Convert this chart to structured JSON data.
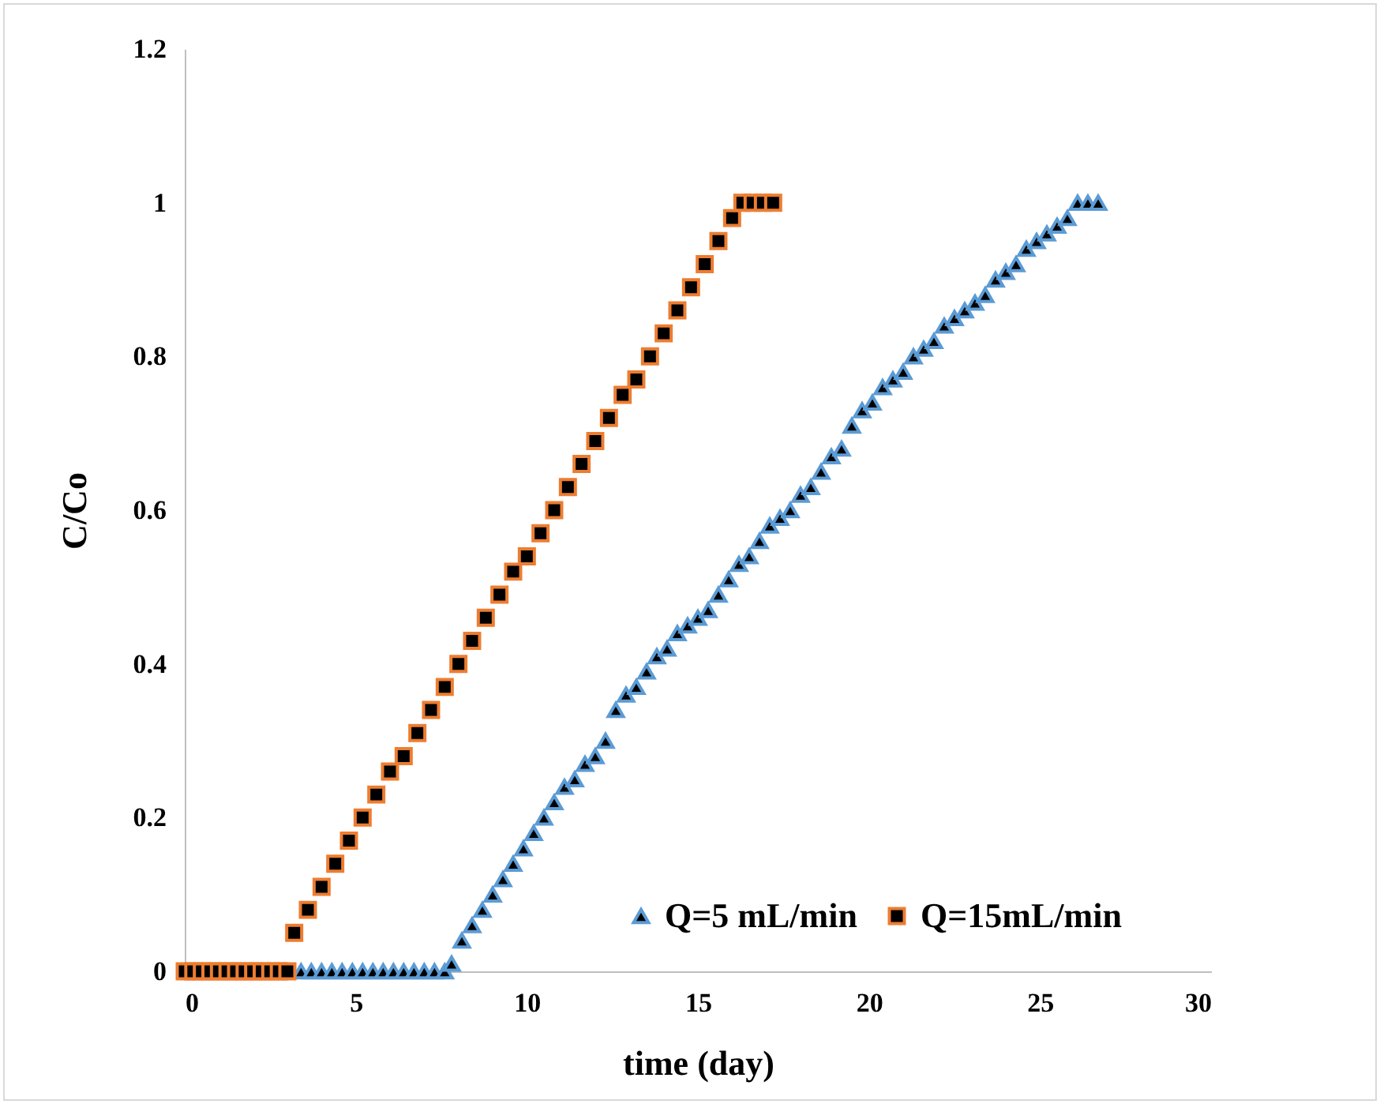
{
  "chart_data": {
    "type": "scatter",
    "xlabel": "time (day)",
    "ylabel": "C/Co",
    "xlim": [
      0,
      30
    ],
    "xticks": [
      0,
      5,
      10,
      15,
      20,
      25,
      30
    ],
    "ylim": [
      0,
      1.2
    ],
    "yticks": [
      0,
      0.2,
      0.4,
      0.6,
      0.8,
      1,
      1.2
    ],
    "grid": false,
    "legend": "bottom right",
    "series": [
      {
        "name": "Q=5 mL/min",
        "color": "#5b9bd5",
        "marker": "triangle",
        "x": [
          3.4,
          3.7,
          4.0,
          4.3,
          4.6,
          4.9,
          5.2,
          5.5,
          5.8,
          6.1,
          6.4,
          6.7,
          7.0,
          7.3,
          7.6,
          7.8,
          8.1,
          8.4,
          8.7,
          9.0,
          9.3,
          9.6,
          9.9,
          10.2,
          10.5,
          10.8,
          11.1,
          11.4,
          11.7,
          12.0,
          12.3,
          12.6,
          12.9,
          13.2,
          13.5,
          13.8,
          14.1,
          14.4,
          14.7,
          15.0,
          15.3,
          15.6,
          15.9,
          16.2,
          16.5,
          16.8,
          17.1,
          17.4,
          17.7,
          18.0,
          18.3,
          18.6,
          18.9,
          19.2,
          19.5,
          19.8,
          20.1,
          20.4,
          20.7,
          21.0,
          21.3,
          21.6,
          21.9,
          22.2,
          22.5,
          22.8,
          23.1,
          23.4,
          23.7,
          24.0,
          24.3,
          24.6,
          24.9,
          25.2,
          25.5,
          25.8,
          26.1,
          26.4,
          26.7
        ],
        "values": [
          0,
          0,
          0,
          0,
          0,
          0,
          0,
          0,
          0,
          0,
          0,
          0,
          0,
          0,
          0,
          0.01,
          0.04,
          0.06,
          0.08,
          0.1,
          0.12,
          0.14,
          0.16,
          0.18,
          0.2,
          0.22,
          0.24,
          0.25,
          0.27,
          0.28,
          0.3,
          0.34,
          0.36,
          0.37,
          0.39,
          0.41,
          0.42,
          0.44,
          0.45,
          0.46,
          0.47,
          0.49,
          0.51,
          0.53,
          0.54,
          0.56,
          0.58,
          0.59,
          0.6,
          0.62,
          0.63,
          0.65,
          0.67,
          0.68,
          0.71,
          0.73,
          0.74,
          0.76,
          0.77,
          0.78,
          0.8,
          0.81,
          0.82,
          0.84,
          0.85,
          0.86,
          0.87,
          0.88,
          0.9,
          0.91,
          0.92,
          0.94,
          0.95,
          0.96,
          0.97,
          0.98,
          1,
          1,
          1
        ]
      },
      {
        "name": "Q=15mL/min",
        "color": "#ed7d31",
        "marker": "square",
        "x": [
          0,
          0.25,
          0.5,
          0.75,
          1.0,
          1.25,
          1.5,
          1.75,
          2.0,
          2.25,
          2.5,
          2.75,
          3.0,
          3.2,
          3.6,
          4.0,
          4.4,
          4.8,
          5.2,
          5.6,
          6.0,
          6.4,
          6.8,
          7.2,
          7.6,
          8.0,
          8.4,
          8.8,
          9.2,
          9.6,
          10.0,
          10.4,
          10.8,
          11.2,
          11.6,
          12.0,
          12.4,
          12.8,
          13.2,
          13.6,
          14.0,
          14.4,
          14.8,
          15.2,
          15.6,
          16.0,
          16.3,
          16.6,
          16.9,
          17.2
        ],
        "values": [
          0,
          0,
          0,
          0,
          0,
          0,
          0,
          0,
          0,
          0,
          0,
          0,
          0,
          0.05,
          0.08,
          0.11,
          0.14,
          0.17,
          0.2,
          0.23,
          0.26,
          0.28,
          0.31,
          0.34,
          0.37,
          0.4,
          0.43,
          0.46,
          0.49,
          0.52,
          0.54,
          0.57,
          0.6,
          0.63,
          0.66,
          0.69,
          0.72,
          0.75,
          0.77,
          0.8,
          0.83,
          0.86,
          0.89,
          0.92,
          0.95,
          0.98,
          1,
          1,
          1,
          1
        ]
      }
    ]
  }
}
